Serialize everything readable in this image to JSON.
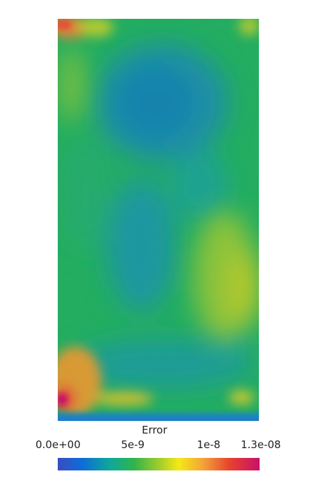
{
  "legend": {
    "title": "Error",
    "ticks": [
      "0.0e+00",
      "5e-9",
      "1e-8",
      "1.3e-08"
    ],
    "range": [
      0,
      1.3e-08
    ],
    "colormap": [
      "#3b4cc0",
      "#0e6cd8",
      "#0fa89a",
      "#32b44a",
      "#9fcc2e",
      "#f6e816",
      "#f3a33a",
      "#e7432d",
      "#c8106a"
    ]
  }
}
